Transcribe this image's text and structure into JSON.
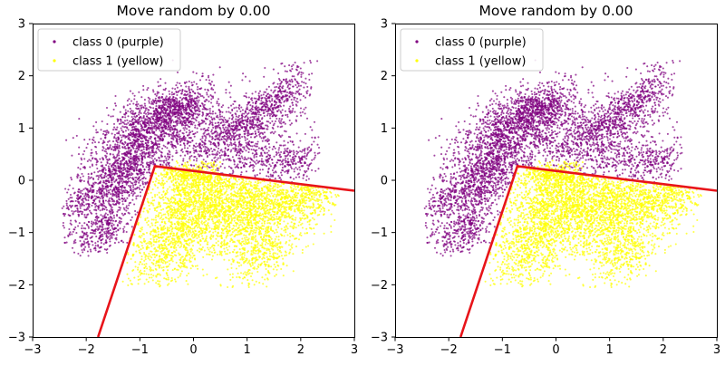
{
  "figure": {
    "background": "#ffffff"
  },
  "chart_data": [
    {
      "type": "scatter",
      "title": "Move random by 0.00",
      "xlabel": "",
      "ylabel": "",
      "xlim": [
        -3,
        3
      ],
      "ylim": [
        -3,
        3
      ],
      "xticks": [
        -3,
        -2,
        -1,
        0,
        1,
        2,
        3
      ],
      "yticks": [
        -3,
        -2,
        -1,
        0,
        1,
        2,
        3
      ],
      "grid": false,
      "legend": {
        "placement": "upper-left",
        "entries": [
          "class 0 (purple)",
          "class 1 (yellow)"
        ]
      },
      "series": [
        {
          "name": "class 0 (purple)",
          "color": "#800080",
          "clusters": [
            {
              "cx": -0.8,
              "cy": 0.95,
              "sx": 0.55,
              "sy": 0.42,
              "rho": 0.55,
              "n": 1300,
              "seed": 11
            },
            {
              "cx": -0.3,
              "cy": 1.35,
              "sx": 0.35,
              "sy": 0.22,
              "rho": 0.4,
              "n": 450,
              "seed": 12
            },
            {
              "cx": 0.7,
              "cy": 0.75,
              "sx": 0.5,
              "sy": 0.3,
              "rho": 0.15,
              "n": 650,
              "seed": 13
            },
            {
              "cx": 1.2,
              "cy": 1.3,
              "sx": 0.42,
              "sy": 0.25,
              "rho": 0.55,
              "n": 450,
              "seed": 14
            },
            {
              "cx": 1.7,
              "cy": 1.75,
              "sx": 0.22,
              "sy": 0.3,
              "rho": 0.3,
              "n": 170,
              "seed": 15
            },
            {
              "cx": 1.8,
              "cy": 0.35,
              "sx": 0.45,
              "sy": 0.22,
              "rho": 0.3,
              "n": 300,
              "seed": 16
            },
            {
              "cx": -1.7,
              "cy": -0.2,
              "sx": 0.45,
              "sy": 0.38,
              "rho": 0.6,
              "n": 650,
              "seed": 17
            },
            {
              "cx": -1.7,
              "cy": -0.95,
              "sx": 0.28,
              "sy": 0.25,
              "rho": 0.45,
              "n": 320,
              "seed": 18
            },
            {
              "cx": -1.15,
              "cy": 0.2,
              "sx": 0.3,
              "sy": 0.3,
              "rho": 0.2,
              "n": 320,
              "seed": 19
            }
          ],
          "region": {
            "side": "outside",
            "x": [
              -2.45,
              2.35
            ],
            "y": [
              -1.45,
              2.3
            ]
          }
        },
        {
          "name": "class 1 (yellow)",
          "color": "#ffff00",
          "clusters": [
            {
              "cx": 0.2,
              "cy": -0.4,
              "sx": 0.6,
              "sy": 0.45,
              "rho": -0.1,
              "n": 1500,
              "seed": 21
            },
            {
              "cx": 1.3,
              "cy": -0.45,
              "sx": 0.55,
              "sy": 0.4,
              "rho": 0.2,
              "n": 900,
              "seed": 22
            },
            {
              "cx": -0.5,
              "cy": -1.3,
              "sx": 0.42,
              "sy": 0.4,
              "rho": 0.3,
              "n": 650,
              "seed": 23
            },
            {
              "cx": 1.25,
              "cy": -1.35,
              "sx": 0.32,
              "sy": 0.35,
              "rho": 0.3,
              "n": 400,
              "seed": 24
            },
            {
              "cx": 2.1,
              "cy": -0.35,
              "sx": 0.35,
              "sy": 0.25,
              "rho": 0.2,
              "n": 300,
              "seed": 25
            },
            {
              "cx": 0.0,
              "cy": 0.15,
              "sx": 0.35,
              "sy": 0.12,
              "rho": 0.0,
              "n": 300,
              "seed": 26
            }
          ],
          "region": {
            "side": "inside",
            "x": [
              -1.35,
              2.75
            ],
            "y": [
              -2.05,
              0.38
            ]
          }
        }
      ],
      "boundary": {
        "color": "#e8141a",
        "points": [
          [
            -1.78,
            -3.0
          ],
          [
            -0.72,
            0.27
          ],
          [
            3.0,
            -0.2
          ]
        ]
      }
    },
    {
      "type": "scatter",
      "title": "Move random by 0.00",
      "xlabel": "",
      "ylabel": "",
      "xlim": [
        -3,
        3
      ],
      "ylim": [
        -3,
        3
      ],
      "xticks": [
        -3,
        -2,
        -1,
        0,
        1,
        2,
        3
      ],
      "yticks": [
        -3,
        -2,
        -1,
        0,
        1,
        2,
        3
      ],
      "grid": false,
      "legend": {
        "placement": "upper-left",
        "entries": [
          "class 0 (purple)",
          "class 1 (yellow)"
        ]
      },
      "series": [
        {
          "name": "class 0 (purple)",
          "color": "#800080",
          "clusters": [
            {
              "cx": -0.8,
              "cy": 0.95,
              "sx": 0.55,
              "sy": 0.42,
              "rho": 0.55,
              "n": 1300,
              "seed": 11
            },
            {
              "cx": -0.3,
              "cy": 1.35,
              "sx": 0.35,
              "sy": 0.22,
              "rho": 0.4,
              "n": 450,
              "seed": 12
            },
            {
              "cx": 0.7,
              "cy": 0.75,
              "sx": 0.5,
              "sy": 0.3,
              "rho": 0.15,
              "n": 650,
              "seed": 13
            },
            {
              "cx": 1.2,
              "cy": 1.3,
              "sx": 0.42,
              "sy": 0.25,
              "rho": 0.55,
              "n": 450,
              "seed": 14
            },
            {
              "cx": 1.7,
              "cy": 1.75,
              "sx": 0.22,
              "sy": 0.3,
              "rho": 0.3,
              "n": 170,
              "seed": 15
            },
            {
              "cx": 1.8,
              "cy": 0.35,
              "sx": 0.45,
              "sy": 0.22,
              "rho": 0.3,
              "n": 300,
              "seed": 16
            },
            {
              "cx": -1.7,
              "cy": -0.2,
              "sx": 0.45,
              "sy": 0.38,
              "rho": 0.6,
              "n": 650,
              "seed": 17
            },
            {
              "cx": -1.7,
              "cy": -0.95,
              "sx": 0.28,
              "sy": 0.25,
              "rho": 0.45,
              "n": 320,
              "seed": 18
            },
            {
              "cx": -1.15,
              "cy": 0.2,
              "sx": 0.3,
              "sy": 0.3,
              "rho": 0.2,
              "n": 320,
              "seed": 19
            }
          ],
          "region": {
            "side": "outside",
            "x": [
              -2.45,
              2.35
            ],
            "y": [
              -1.45,
              2.3
            ]
          }
        },
        {
          "name": "class 1 (yellow)",
          "color": "#ffff00",
          "clusters": [
            {
              "cx": 0.2,
              "cy": -0.4,
              "sx": 0.6,
              "sy": 0.45,
              "rho": -0.1,
              "n": 1500,
              "seed": 21
            },
            {
              "cx": 1.3,
              "cy": -0.45,
              "sx": 0.55,
              "sy": 0.4,
              "rho": 0.2,
              "n": 900,
              "seed": 22
            },
            {
              "cx": -0.5,
              "cy": -1.3,
              "sx": 0.42,
              "sy": 0.4,
              "rho": 0.3,
              "n": 650,
              "seed": 23
            },
            {
              "cx": 1.25,
              "cy": -1.35,
              "sx": 0.32,
              "sy": 0.35,
              "rho": 0.3,
              "n": 400,
              "seed": 24
            },
            {
              "cx": 2.1,
              "cy": -0.35,
              "sx": 0.35,
              "sy": 0.25,
              "rho": 0.2,
              "n": 300,
              "seed": 25
            },
            {
              "cx": 0.0,
              "cy": 0.15,
              "sx": 0.35,
              "sy": 0.12,
              "rho": 0.0,
              "n": 300,
              "seed": 26
            }
          ],
          "region": {
            "side": "inside",
            "x": [
              -1.35,
              2.75
            ],
            "y": [
              -2.05,
              0.38
            ]
          }
        }
      ],
      "boundary": {
        "color": "#e8141a",
        "points": [
          [
            -1.78,
            -3.0
          ],
          [
            -0.72,
            0.27
          ],
          [
            3.0,
            -0.2
          ]
        ]
      }
    }
  ]
}
